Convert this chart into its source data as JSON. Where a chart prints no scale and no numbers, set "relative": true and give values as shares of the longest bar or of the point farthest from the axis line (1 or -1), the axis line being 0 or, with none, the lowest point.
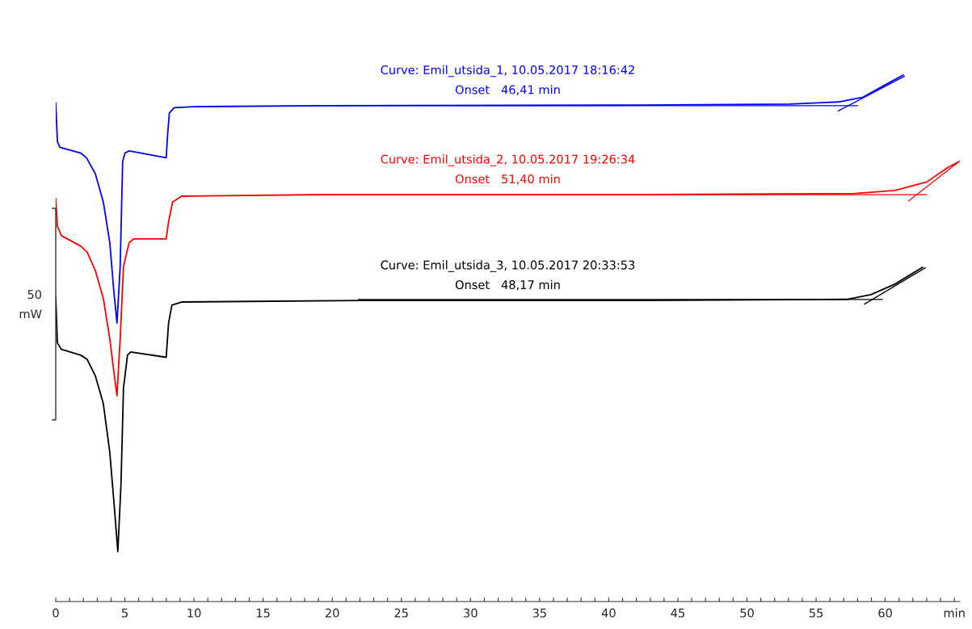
{
  "chart_data": {
    "type": "line",
    "relative": true,
    "ylabel": "50\nmW",
    "legend": false,
    "grid": false,
    "tick_labels": "x",
    "xlim": [
      0,
      65.4
    ],
    "xticks": [
      0,
      {
        "value": 1,
        "label": null
      },
      {
        "value": 2,
        "label": null
      },
      {
        "value": 3,
        "label": null
      },
      {
        "value": 4,
        "label": null
      },
      5,
      {
        "value": 6,
        "label": null
      },
      {
        "value": 7,
        "label": null
      },
      {
        "value": 8,
        "label": null
      },
      {
        "value": 9,
        "label": null
      },
      10,
      {
        "value": 11,
        "label": null
      },
      {
        "value": 12,
        "label": null
      },
      {
        "value": 13,
        "label": null
      },
      {
        "value": 14,
        "label": null
      },
      15,
      {
        "value": 16,
        "label": null
      },
      {
        "value": 17,
        "label": null
      },
      {
        "value": 18,
        "label": null
      },
      {
        "value": 19,
        "label": null
      },
      20,
      {
        "value": 21,
        "label": null
      },
      {
        "value": 22,
        "label": null
      },
      {
        "value": 23,
        "label": null
      },
      {
        "value": 24,
        "label": null
      },
      25,
      {
        "value": 26,
        "label": null
      },
      {
        "value": 27,
        "label": null
      },
      {
        "value": 28,
        "label": null
      },
      {
        "value": 29,
        "label": null
      },
      30,
      {
        "value": 31,
        "label": null
      },
      {
        "value": 32,
        "label": null
      },
      {
        "value": 33,
        "label": null
      },
      {
        "value": 34,
        "label": null
      },
      35,
      {
        "value": 36,
        "label": null
      },
      {
        "value": 37,
        "label": null
      },
      {
        "value": 38,
        "label": null
      },
      {
        "value": 39,
        "label": null
      },
      40,
      {
        "value": 41,
        "label": null
      },
      {
        "value": 42,
        "label": null
      },
      {
        "value": 43,
        "label": null
      },
      {
        "value": 44,
        "label": null
      },
      45,
      {
        "value": 46,
        "label": null
      },
      {
        "value": 47,
        "label": null
      },
      {
        "value": 48,
        "label": null
      },
      {
        "value": 49,
        "label": null
      },
      50,
      {
        "value": 51,
        "label": null
      },
      {
        "value": 52,
        "label": null
      },
      {
        "value": 53,
        "label": null
      },
      {
        "value": 54,
        "label": null
      },
      55,
      {
        "value": 56,
        "label": null
      },
      {
        "value": 57,
        "label": null
      },
      {
        "value": 58,
        "label": null
      },
      {
        "value": 59,
        "label": null
      },
      60,
      {
        "value": 61,
        "label": null
      },
      {
        "value": 62,
        "label": null
      },
      {
        "value": 63,
        "label": null
      },
      {
        "value": 64,
        "label": null
      },
      {
        "value": 65,
        "label": "min"
      }
    ],
    "series": [
      {
        "name": "Curve: Emil_utsida_1, 10.05.2017 18:16:42\nOnset   46,41 min",
        "color": "#0000ff",
        "x": [
          0,
          0.12,
          0.29,
          1.81,
          2.22,
          2.86,
          3.44,
          3.91,
          4.2,
          4.43,
          4.66,
          4.84,
          5.01,
          5.31,
          7.99,
          8.1,
          8.22,
          8.57,
          9.97,
          19.3,
          42.6,
          53.1,
          56.6,
          58.4,
          60.1,
          61.3
        ],
        "values": [
          0.947,
          0.874,
          0.863,
          0.852,
          0.843,
          0.813,
          0.759,
          0.682,
          0.59,
          0.529,
          0.636,
          0.836,
          0.852,
          0.856,
          0.843,
          0.89,
          0.928,
          0.938,
          0.94,
          0.942,
          0.943,
          0.945,
          0.949,
          0.958,
          0.983,
          1.0
        ]
      },
      {
        "color": "#0000ff",
        "x": [
          18.4,
          58.0
        ],
        "values": [
          0.942,
          0.942
        ]
      },
      {
        "color": "#0000ff",
        "x": [
          56.6,
          61.4
        ],
        "values": [
          0.932,
          0.998
        ]
      },
      {
        "name": "Curve: Emil_utsida_2, 10.05.2017 19:26:34\nOnset   51,40 min",
        "color": "#ff0000",
        "x": [
          0,
          0.12,
          0.41,
          1.81,
          2.27,
          2.86,
          3.44,
          3.91,
          4.2,
          4.43,
          4.66,
          4.9,
          5.31,
          5.66,
          7.99,
          8.16,
          8.45,
          9.1,
          19.3,
          42.6,
          57.8,
          60.7,
          63.0,
          64.5,
          65.35
        ],
        "values": [
          0.766,
          0.713,
          0.695,
          0.675,
          0.664,
          0.629,
          0.576,
          0.499,
          0.437,
          0.391,
          0.499,
          0.636,
          0.682,
          0.689,
          0.689,
          0.721,
          0.759,
          0.77,
          0.773,
          0.773,
          0.775,
          0.781,
          0.797,
          0.824,
          0.836
        ]
      },
      {
        "color": "#ff0000",
        "x": [
          18.4,
          63.0
        ],
        "values": [
          0.773,
          0.773
        ]
      },
      {
        "color": "#ff0000",
        "x": [
          61.7,
          65.25
        ],
        "values": [
          0.761,
          0.834
        ]
      },
      {
        "name": "Curve: Emil_utsida_3, 10.05.2017 20:33:53\nOnset   48,17 min",
        "color": "#000000",
        "x": [
          0,
          0.12,
          0.41,
          1.81,
          2.27,
          2.86,
          3.44,
          3.91,
          4.2,
          4.49,
          4.72,
          4.9,
          5.19,
          5.42,
          7.99,
          8.16,
          8.4,
          9.1,
          22.2,
          42.6,
          57.2,
          58.97,
          60.7,
          62.7
        ],
        "values": [
          0.578,
          0.491,
          0.479,
          0.468,
          0.46,
          0.429,
          0.376,
          0.283,
          0.192,
          0.095,
          0.223,
          0.406,
          0.468,
          0.474,
          0.464,
          0.529,
          0.563,
          0.569,
          0.572,
          0.572,
          0.574,
          0.583,
          0.603,
          0.635
        ]
      },
      {
        "color": "#000000",
        "x": [
          21.9,
          59.8
        ],
        "values": [
          0.574,
          0.574
        ]
      },
      {
        "color": "#000000",
        "x": [
          58.5,
          62.9
        ],
        "values": [
          0.565,
          0.634
        ]
      }
    ]
  }
}
